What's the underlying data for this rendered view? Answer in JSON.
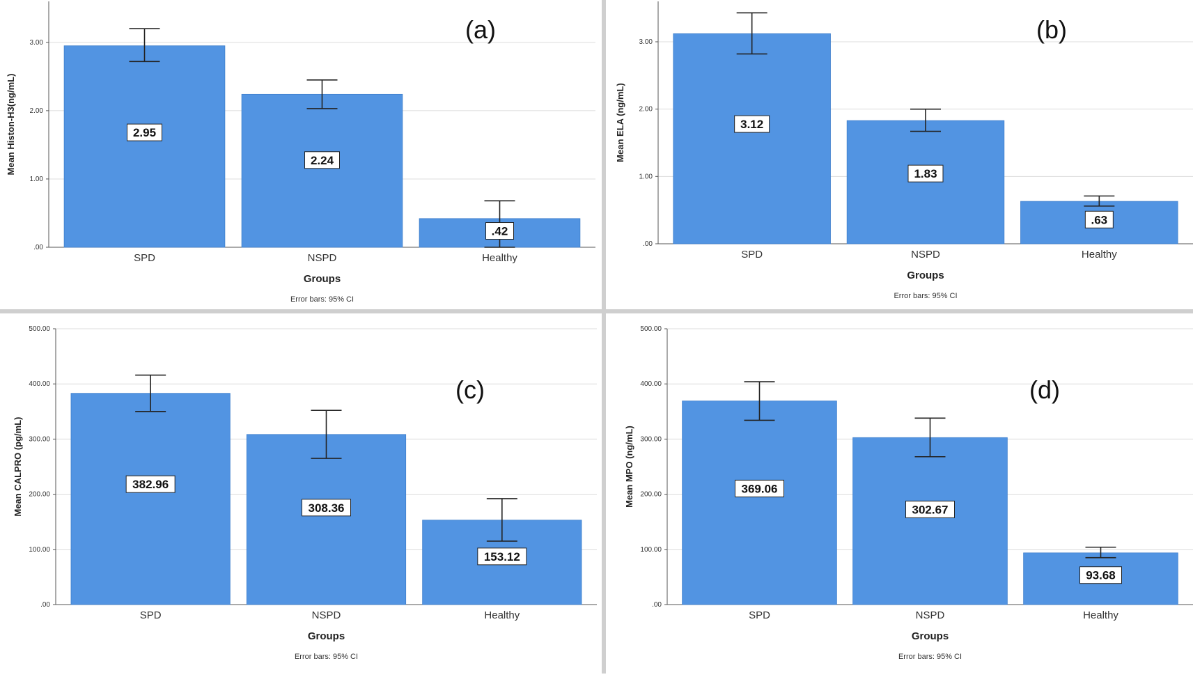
{
  "chart_data": [
    {
      "type": "bar",
      "panel_label": "(a)",
      "categories": [
        "SPD",
        "NSPD",
        "Healthy"
      ],
      "values": [
        2.95,
        2.24,
        0.42
      ],
      "value_labels": [
        "2.95",
        "2.24",
        ".42"
      ],
      "ci_low": [
        2.72,
        2.03,
        0.0
      ],
      "ci_high": [
        3.2,
        2.45,
        0.68
      ],
      "ylim": [
        0,
        3.6
      ],
      "yticks": [
        0,
        1,
        2,
        3
      ],
      "ytick_labels": [
        ".00",
        "1.00",
        "2.00",
        "3.00"
      ],
      "ylabel": "Mean Histon-H3(ng/mL)",
      "xlabel": "Groups",
      "footnote": "Error bars: 95% CI",
      "grid": true,
      "bar_color": "#5294e2"
    },
    {
      "type": "bar",
      "panel_label": "(b)",
      "categories": [
        "SPD",
        "NSPD",
        "Healthy"
      ],
      "values": [
        3.12,
        1.83,
        0.63
      ],
      "value_labels": [
        "3.12",
        "1.83",
        ".63"
      ],
      "ci_low": [
        2.82,
        1.67,
        0.56
      ],
      "ci_high": [
        3.43,
        2.0,
        0.71
      ],
      "ylim": [
        0,
        3.6
      ],
      "yticks": [
        0,
        1,
        2,
        3
      ],
      "ytick_labels": [
        ".00",
        "1.00",
        "2.00",
        "3.00"
      ],
      "ylabel": "Mean ELA (ng/mL)",
      "xlabel": "Groups",
      "footnote": "Error bars: 95% CI",
      "grid": true,
      "bar_color": "#5294e2"
    },
    {
      "type": "bar",
      "panel_label": "(c)",
      "categories": [
        "SPD",
        "NSPD",
        "Healthy"
      ],
      "values": [
        382.96,
        308.36,
        153.12
      ],
      "value_labels": [
        "382.96",
        "308.36",
        "153.12"
      ],
      "ci_low": [
        350,
        265,
        115
      ],
      "ci_high": [
        416,
        352,
        192
      ],
      "ylim": [
        0,
        500
      ],
      "yticks": [
        0,
        100,
        200,
        300,
        400,
        500
      ],
      "ytick_labels": [
        ".00",
        "100.00",
        "200.00",
        "300.00",
        "400.00",
        "500.00"
      ],
      "ylabel": "Mean CALPRO (pg/mL)",
      "xlabel": "Groups",
      "footnote": "Error bars: 95% CI",
      "grid": true,
      "bar_color": "#5294e2"
    },
    {
      "type": "bar",
      "panel_label": "(d)",
      "categories": [
        "SPD",
        "NSPD",
        "Healthy"
      ],
      "values": [
        369.06,
        302.67,
        93.68
      ],
      "value_labels": [
        "369.06",
        "302.67",
        "93.68"
      ],
      "ci_low": [
        334,
        268,
        85
      ],
      "ci_high": [
        404,
        338,
        104
      ],
      "ylim": [
        0,
        500
      ],
      "yticks": [
        0,
        100,
        200,
        300,
        400,
        500
      ],
      "ytick_labels": [
        ".00",
        "100.00",
        "200.00",
        "300.00",
        "400.00",
        "500.00"
      ],
      "ylabel": "Mean MPO (ng/mL)",
      "xlabel": "Groups",
      "footnote": "Error bars: 95% CI",
      "grid": true,
      "bar_color": "#5294e2"
    }
  ]
}
